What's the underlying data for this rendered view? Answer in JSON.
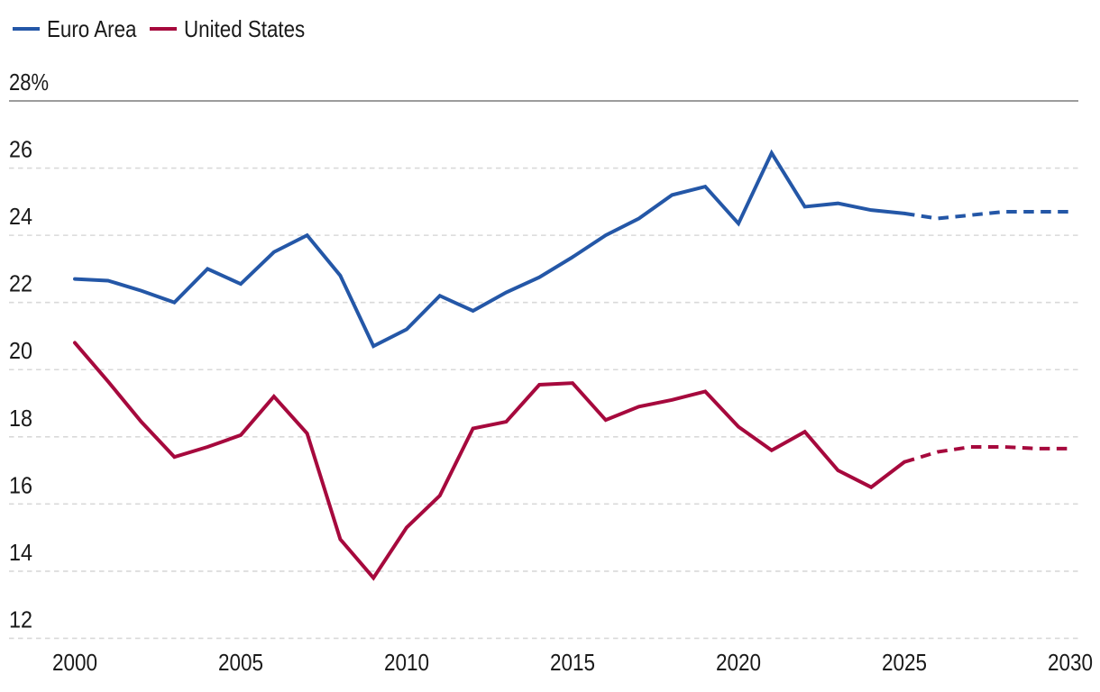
{
  "legend": [
    {
      "label": "Euro Area",
      "color": "#2457a7"
    },
    {
      "label": "United States",
      "color": "#a6093d"
    }
  ],
  "colors": {
    "background": "#ffffff",
    "grid": "#d9d9d9",
    "top_rule": "#7c7c7c",
    "text": "#1a1a1a",
    "euro_area": "#2457a7",
    "united_states": "#a6093d"
  },
  "chart_data": {
    "type": "line",
    "title": "",
    "xlabel": "",
    "ylabel": "",
    "x": [
      2000,
      2001,
      2002,
      2003,
      2004,
      2005,
      2006,
      2007,
      2008,
      2009,
      2010,
      2011,
      2012,
      2013,
      2014,
      2015,
      2016,
      2017,
      2018,
      2019,
      2020,
      2021,
      2022,
      2023,
      2024,
      2025,
      2026,
      2027,
      2028,
      2029,
      2030
    ],
    "series": [
      {
        "name": "Euro Area",
        "color": "#2457a7",
        "solid_until_x": 2025,
        "values": [
          22.7,
          22.65,
          22.35,
          22.0,
          23.0,
          22.55,
          23.5,
          24.0,
          22.8,
          20.7,
          21.2,
          22.2,
          21.75,
          22.3,
          22.75,
          23.35,
          24.0,
          24.5,
          25.2,
          25.45,
          24.35,
          26.45,
          24.85,
          24.95,
          24.75,
          24.65,
          24.5,
          24.6,
          24.7,
          24.7,
          24.7
        ]
      },
      {
        "name": "United States",
        "color": "#a6093d",
        "solid_until_x": 2025,
        "values": [
          20.8,
          19.65,
          18.45,
          17.4,
          17.7,
          18.05,
          19.2,
          18.1,
          14.95,
          13.8,
          15.3,
          16.25,
          18.25,
          18.45,
          19.55,
          19.6,
          18.5,
          18.9,
          19.1,
          19.35,
          18.3,
          17.6,
          18.15,
          17.0,
          16.5,
          17.25,
          17.55,
          17.7,
          17.7,
          17.65,
          17.65
        ]
      }
    ],
    "ylim": [
      12,
      28
    ],
    "xlim": [
      2000,
      2030
    ],
    "yticks": [
      {
        "value": 28,
        "label": "28%",
        "line": "solid"
      },
      {
        "value": 26,
        "label": "26",
        "line": "dashed"
      },
      {
        "value": 24,
        "label": "24",
        "line": "dashed"
      },
      {
        "value": 22,
        "label": "22",
        "line": "dashed"
      },
      {
        "value": 20,
        "label": "20",
        "line": "dashed"
      },
      {
        "value": 18,
        "label": "18",
        "line": "dashed"
      },
      {
        "value": 16,
        "label": "16",
        "line": "dashed"
      },
      {
        "value": 14,
        "label": "14",
        "line": "dashed"
      },
      {
        "value": 12,
        "label": "12",
        "line": "dashed"
      }
    ],
    "xticks": [
      {
        "value": 2000,
        "label": "2000"
      },
      {
        "value": 2005,
        "label": "2005"
      },
      {
        "value": 2010,
        "label": "2010"
      },
      {
        "value": 2015,
        "label": "2015"
      },
      {
        "value": 2020,
        "label": "2020"
      },
      {
        "value": 2025,
        "label": "2025"
      },
      {
        "value": 2030,
        "label": "2030"
      }
    ],
    "grid": "horizontal-dashed",
    "legend_position": "top-left",
    "forecast_dashed_from_x": 2025
  }
}
